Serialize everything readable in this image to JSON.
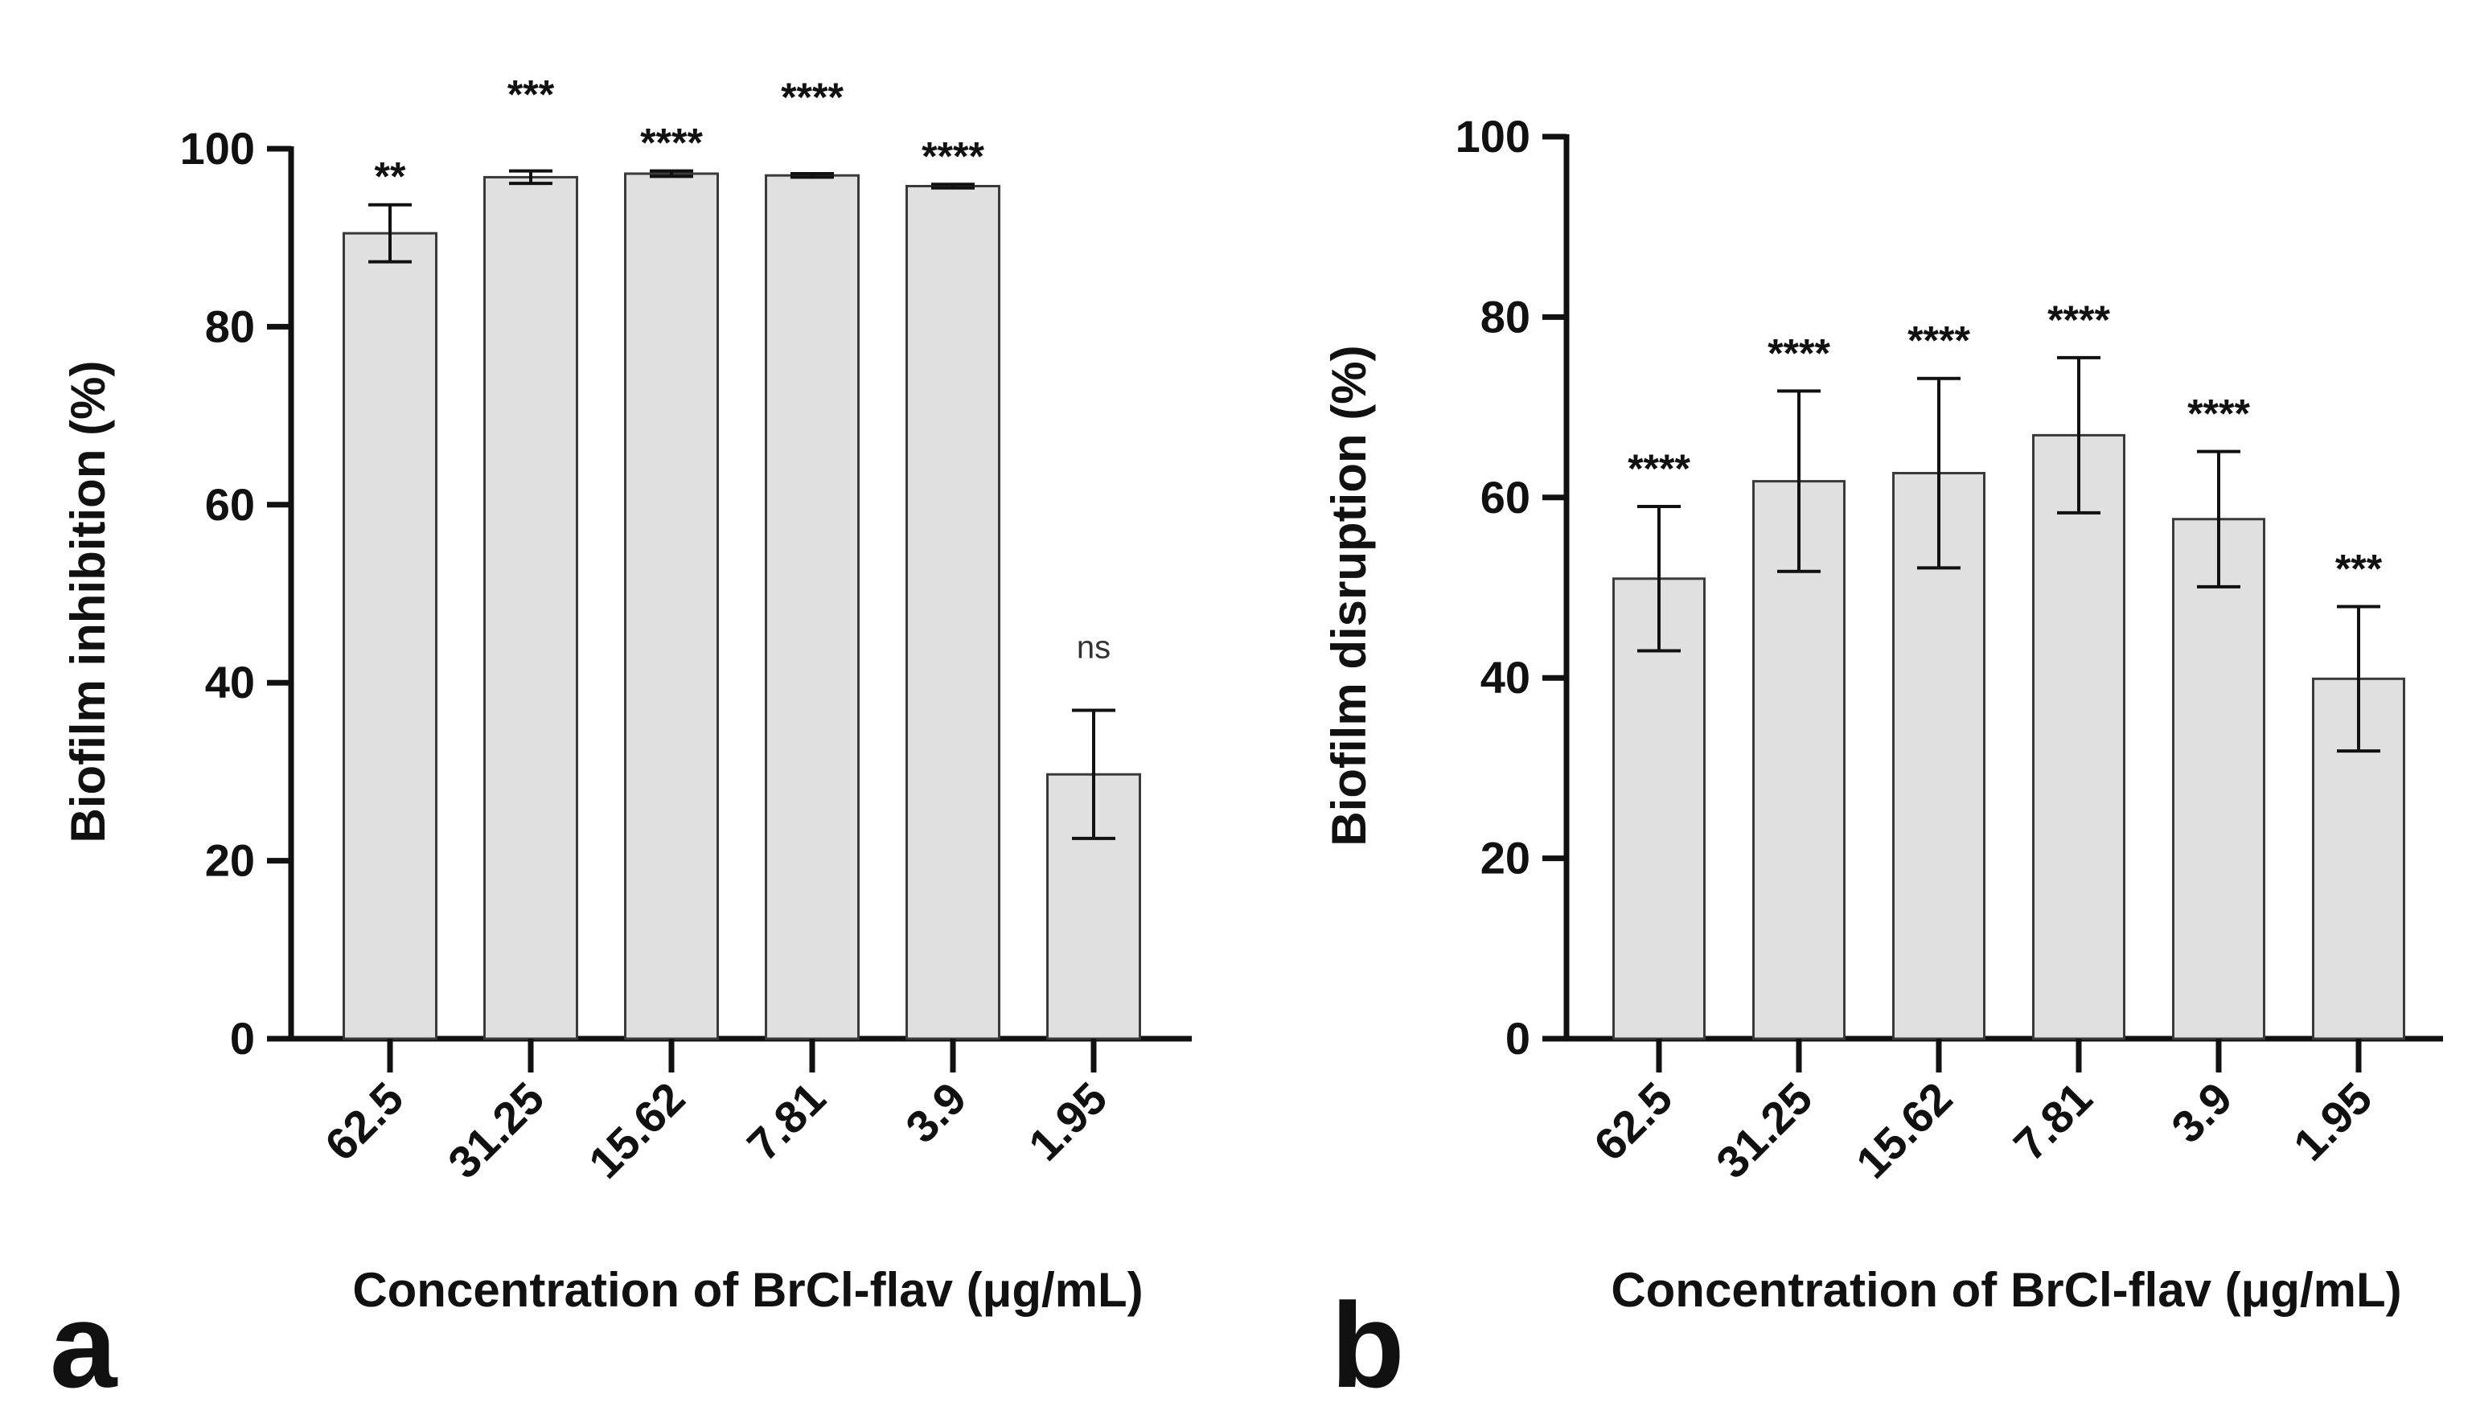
{
  "colors": {
    "bar_fill": "#e0e0e0",
    "bar_stroke": "#3a3a3a",
    "axis": "#111111"
  },
  "chart_data": [
    {
      "type": "bar",
      "panel_label": "a",
      "xlabel": "Concentration of BrCl-flav (μg/mL)",
      "ylabel": "Biofilm inhibition (%)",
      "ylim": [
        0,
        100
      ],
      "yticks": [
        0,
        20,
        40,
        60,
        80,
        100
      ],
      "categories": [
        "62.5",
        "31.25",
        "15.62",
        "7.81",
        "3.9",
        "1.95"
      ],
      "values": [
        90.5,
        96.8,
        97.2,
        97.0,
        95.8,
        29.7
      ],
      "errors": [
        3.2,
        0.7,
        0.3,
        0.2,
        0.2,
        7.2
      ],
      "significance": [
        "**",
        "***",
        "****",
        "****",
        "****",
        "ns"
      ]
    },
    {
      "type": "bar",
      "panel_label": "b",
      "xlabel": "Concentration of BrCl-flav (μg/mL)",
      "ylabel": "Biofilm disruption (%)",
      "ylim": [
        0,
        100
      ],
      "yticks": [
        0,
        20,
        40,
        60,
        80,
        100
      ],
      "categories": [
        "62.5",
        "31.25",
        "15.62",
        "7.81",
        "3.9",
        "1.95"
      ],
      "values": [
        51.0,
        61.8,
        62.7,
        66.9,
        57.6,
        39.9
      ],
      "errors": [
        8.0,
        10.0,
        10.5,
        8.6,
        7.5,
        8.0
      ],
      "significance": [
        "****",
        "****",
        "****",
        "****",
        "****",
        "***"
      ]
    }
  ]
}
